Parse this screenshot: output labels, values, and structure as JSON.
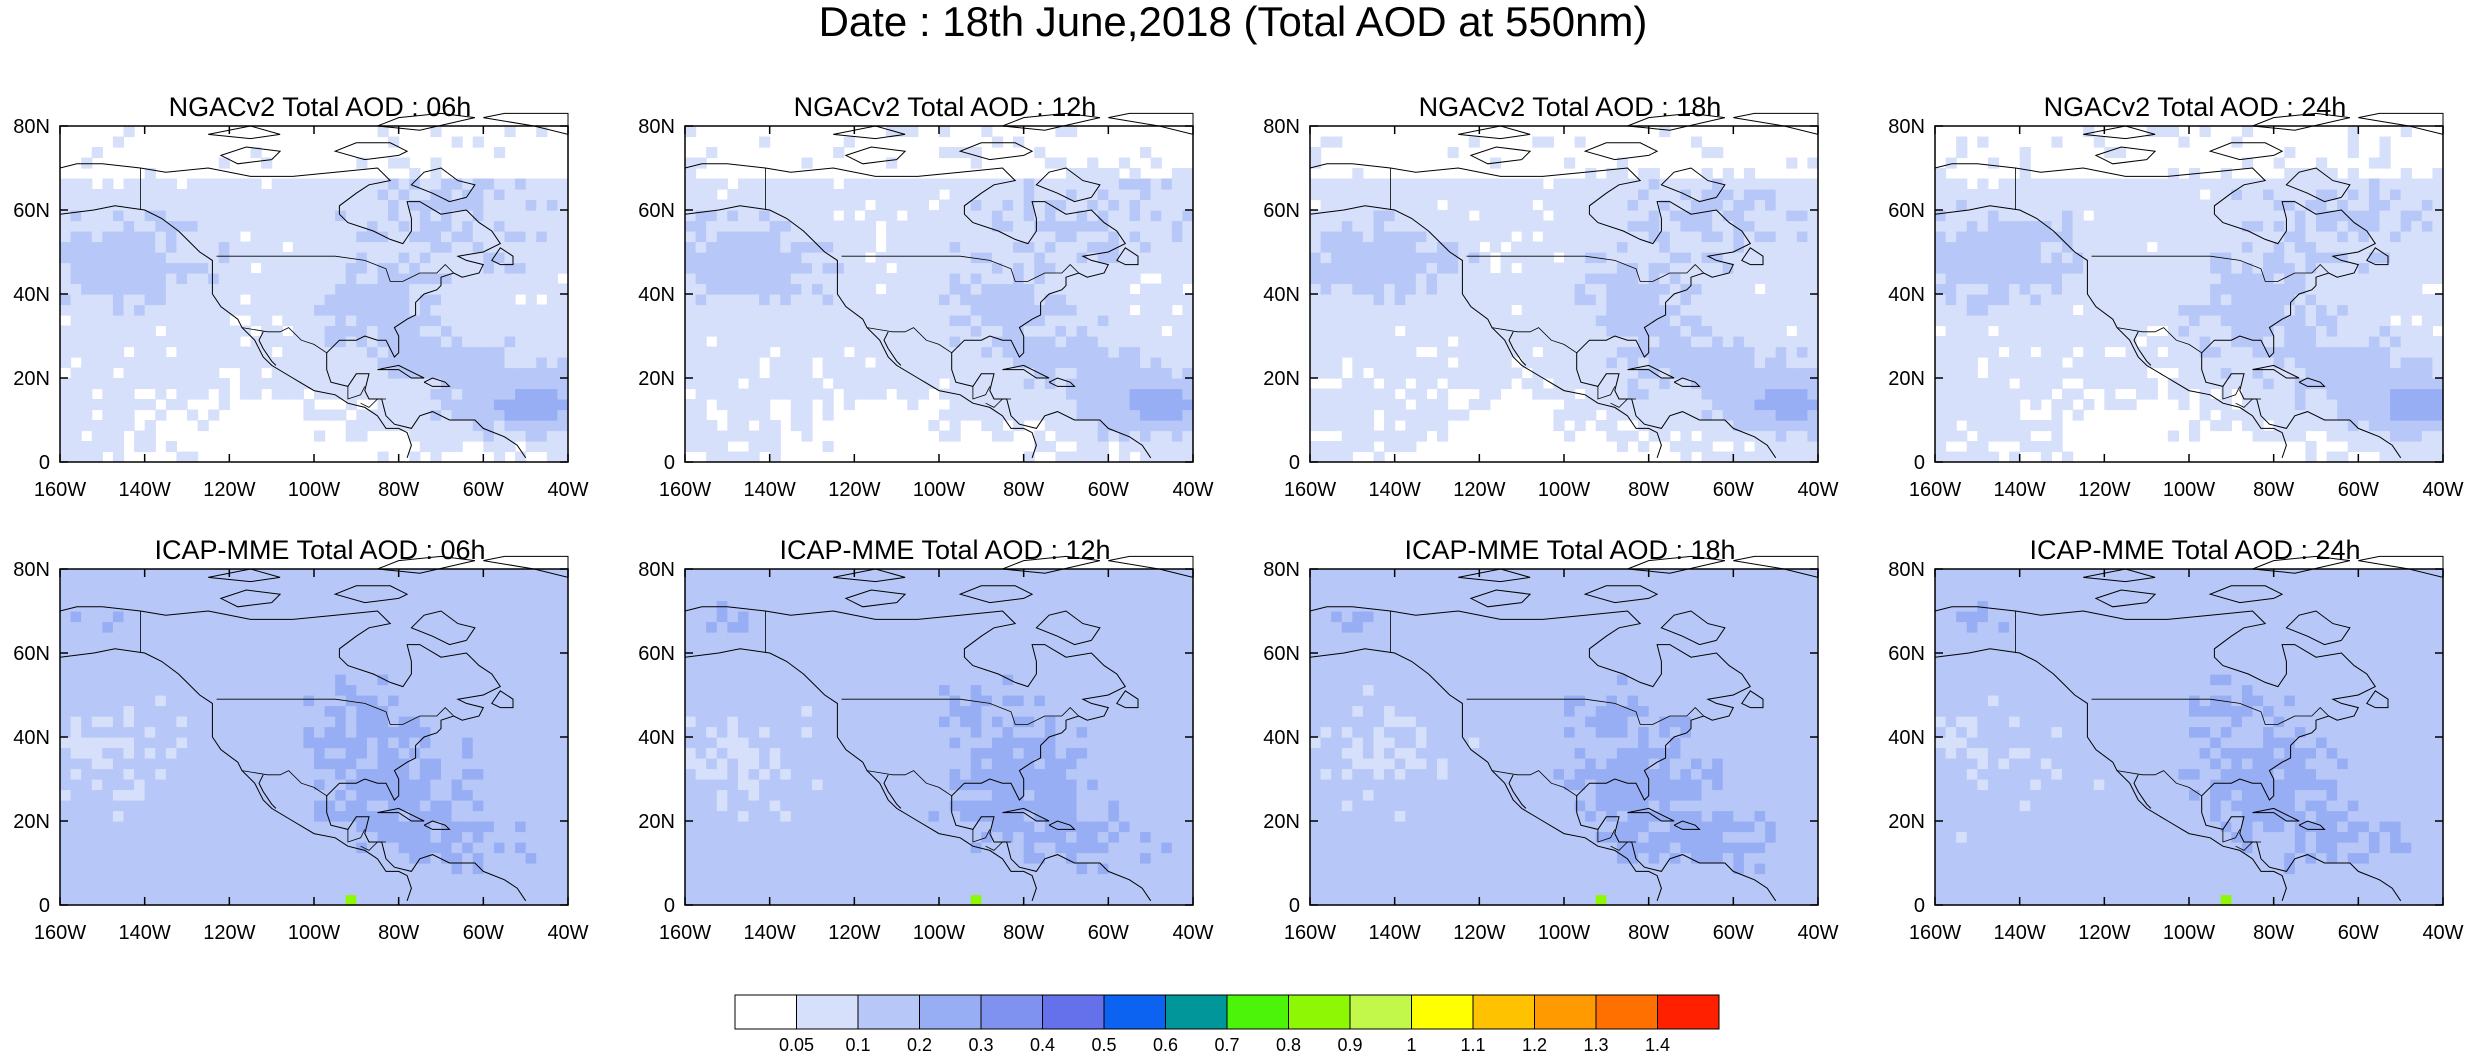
{
  "title": "Date : 18th June,2018 (Total AOD at 550nm)",
  "chart_data": [
    {
      "type": "heatmap",
      "title": "NGACv2 Total AOD : 06h",
      "model": "NGACv2",
      "hour": "06h",
      "xlim": [
        -160,
        -40
      ],
      "ylim": [
        0,
        80
      ],
      "xticks": [
        "160W",
        "140W",
        "120W",
        "100W",
        "80W",
        "60W",
        "40W"
      ],
      "yticks": [
        "0",
        "20N",
        "40N",
        "60N",
        "80N"
      ]
    },
    {
      "type": "heatmap",
      "title": "NGACv2 Total AOD : 12h",
      "model": "NGACv2",
      "hour": "12h",
      "xlim": [
        -160,
        -40
      ],
      "ylim": [
        0,
        80
      ],
      "xticks": [
        "160W",
        "140W",
        "120W",
        "100W",
        "80W",
        "60W",
        "40W"
      ],
      "yticks": [
        "0",
        "20N",
        "40N",
        "60N",
        "80N"
      ]
    },
    {
      "type": "heatmap",
      "title": "NGACv2 Total AOD : 18h",
      "model": "NGACv2",
      "hour": "18h",
      "xlim": [
        -160,
        -40
      ],
      "ylim": [
        0,
        80
      ],
      "xticks": [
        "160W",
        "140W",
        "120W",
        "100W",
        "80W",
        "60W",
        "40W"
      ],
      "yticks": [
        "0",
        "20N",
        "40N",
        "60N",
        "80N"
      ]
    },
    {
      "type": "heatmap",
      "title": "NGACv2 Total AOD : 24h",
      "model": "NGACv2",
      "hour": "24h",
      "xlim": [
        -160,
        -40
      ],
      "ylim": [
        0,
        80
      ],
      "xticks": [
        "160W",
        "140W",
        "120W",
        "100W",
        "80W",
        "60W",
        "40W"
      ],
      "yticks": [
        "0",
        "20N",
        "40N",
        "60N",
        "80N"
      ]
    },
    {
      "type": "heatmap",
      "title": "ICAP-MME Total AOD : 06h",
      "model": "ICAP-MME",
      "hour": "06h",
      "xlim": [
        -160,
        -40
      ],
      "ylim": [
        0,
        80
      ],
      "xticks": [
        "160W",
        "140W",
        "120W",
        "100W",
        "80W",
        "60W",
        "40W"
      ],
      "yticks": [
        "0",
        "20N",
        "40N",
        "60N",
        "80N"
      ]
    },
    {
      "type": "heatmap",
      "title": "ICAP-MME Total AOD : 12h",
      "model": "ICAP-MME",
      "hour": "12h",
      "xlim": [
        -160,
        -40
      ],
      "ylim": [
        0,
        80
      ],
      "xticks": [
        "160W",
        "140W",
        "120W",
        "100W",
        "80W",
        "60W",
        "40W"
      ],
      "yticks": [
        "0",
        "20N",
        "40N",
        "60N",
        "80N"
      ]
    },
    {
      "type": "heatmap",
      "title": "ICAP-MME Total AOD : 18h",
      "model": "ICAP-MME",
      "hour": "18h",
      "xlim": [
        -160,
        -40
      ],
      "ylim": [
        0,
        80
      ],
      "xticks": [
        "160W",
        "140W",
        "120W",
        "100W",
        "80W",
        "60W",
        "40W"
      ],
      "yticks": [
        "0",
        "20N",
        "40N",
        "60N",
        "80N"
      ]
    },
    {
      "type": "heatmap",
      "title": "ICAP-MME Total AOD : 24h",
      "model": "ICAP-MME",
      "hour": "24h",
      "xlim": [
        -160,
        -40
      ],
      "ylim": [
        0,
        80
      ],
      "xticks": [
        "160W",
        "140W",
        "120W",
        "100W",
        "80W",
        "60W",
        "40W"
      ],
      "yticks": [
        "0",
        "20N",
        "40N",
        "60N",
        "80N"
      ]
    }
  ],
  "colorbar": {
    "labels": [
      "0.05",
      "0.1",
      "0.2",
      "0.3",
      "0.4",
      "0.5",
      "0.6",
      "0.7",
      "0.8",
      "0.9",
      "1",
      "1.1",
      "1.2",
      "1.3",
      "1.4"
    ],
    "colors": [
      "#ffffff",
      "#d6e0fb",
      "#b7c7f7",
      "#98aef4",
      "#7f92f0",
      "#6471ea",
      "#0c62f1",
      "#00969a",
      "#4cf40a",
      "#8ef704",
      "#c2f849",
      "#ffff00",
      "#ffc200",
      "#ff9b00",
      "#ff7000",
      "#ff2000"
    ]
  }
}
